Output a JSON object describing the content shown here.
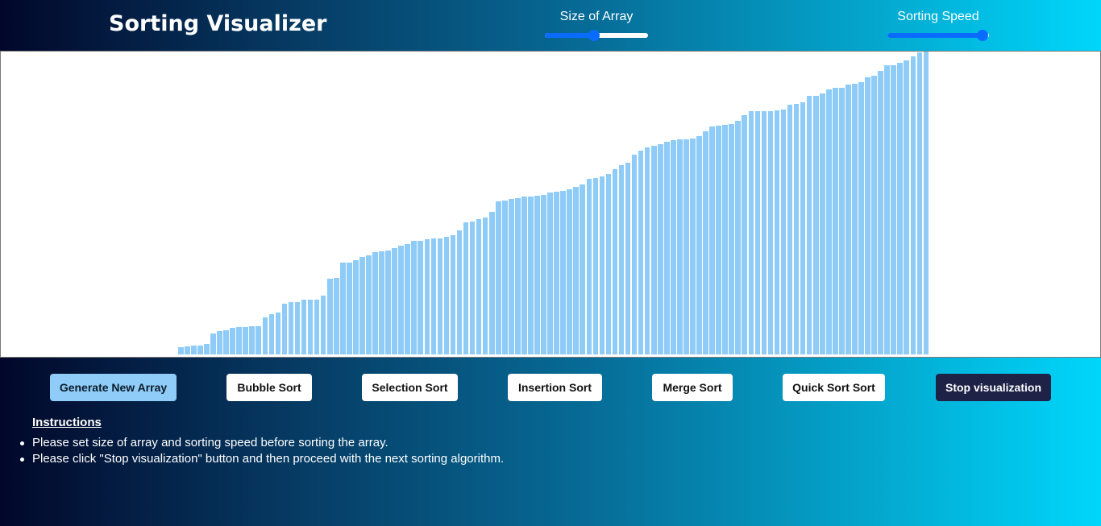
{
  "header": {
    "title": "Sorting Visualizer",
    "size_label": "Size of Array",
    "size_level": 0.48,
    "speed_label": "Sorting Speed",
    "speed_level": 0.94
  },
  "colors": {
    "bar": "#8ecbf6",
    "accent": "#0a6cff",
    "stop_button": "#1d2246"
  },
  "array_bars": [
    2.3,
    2.6,
    2.9,
    3.0,
    3.4,
    6.9,
    7.6,
    8.0,
    8.8,
    9.0,
    9.1,
    9.2,
    9.4,
    12.2,
    13.2,
    13.9,
    16.8,
    17.2,
    17.3,
    18.0,
    18.1,
    18.2,
    19.3,
    25.1,
    25.3,
    30.3,
    30.3,
    31.2,
    32.2,
    32.8,
    33.7,
    34.1,
    34.4,
    35.0,
    35.8,
    36.4,
    37.4,
    37.5,
    38.1,
    38.2,
    38.4,
    38.8,
    39.4,
    41.0,
    43.5,
    44.0,
    44.6,
    45.3,
    47.2,
    50.6,
    50.9,
    51.3,
    51.6,
    52.1,
    52.2,
    52.4,
    52.6,
    53.4,
    53.6,
    54.0,
    54.6,
    55.3,
    56.0,
    58.0,
    58.3,
    58.9,
    59.5,
    61.2,
    62.6,
    63.4,
    65.9,
    67.4,
    68.3,
    69.0,
    69.3,
    70.2,
    70.7,
    71.0,
    71.1,
    71.3,
    72.0,
    73.7,
    75.2,
    75.6,
    75.8,
    76.1,
    77.0,
    79.1,
    80.3,
    80.3,
    80.3,
    80.4,
    80.5,
    80.9,
    82.5,
    82.6,
    83.2,
    85.3,
    85.4,
    86.2,
    87.5,
    88.0,
    88.1,
    89.2,
    89.4,
    90.0,
    91.6,
    92.1,
    93.6,
    95.4,
    95.6,
    96.3,
    97.2,
    98.4,
    99.8,
    100.0
  ],
  "buttons": {
    "generate": "Generate New Array",
    "bubble": "Bubble Sort",
    "selection": "Selection Sort",
    "insertion": "Insertion Sort",
    "merge": "Merge Sort",
    "quick": "Quick Sort Sort",
    "stop": "Stop visualization"
  },
  "instructions": {
    "title": "Instructions",
    "items": [
      "Please set size of array and sorting speed before sorting the array.",
      "Please click \"Stop visualization\" button and then proceed with the next sorting algorithm."
    ]
  }
}
